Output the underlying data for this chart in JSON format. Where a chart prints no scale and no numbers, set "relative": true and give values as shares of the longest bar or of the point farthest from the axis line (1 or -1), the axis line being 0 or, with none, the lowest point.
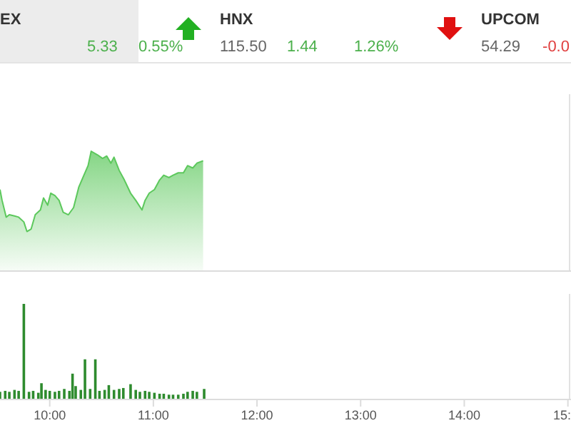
{
  "chart_data": [
    {
      "type": "other",
      "annotations": [
        "EX",
        "5.33",
        "0.55%",
        "HNX",
        "115.50",
        "1.44",
        "1.26%",
        "UPCOM",
        "54.29",
        "-0.0"
      ]
    },
    {
      "type": "area",
      "relative": true,
      "tick_labels": false,
      "xlim": [
        9.52,
        15.03
      ],
      "marker": "none",
      "series": [
        {
          "color": "#5cc85c",
          "x": [
            9.52,
            9.54,
            9.58,
            9.61,
            9.66,
            9.7,
            9.75,
            9.78,
            9.82,
            9.86,
            9.91,
            9.94,
            9.98,
            10.01,
            10.05,
            10.09,
            10.13,
            10.18,
            10.23,
            10.28,
            10.32,
            10.37,
            10.4,
            10.46,
            10.51,
            10.55,
            10.59,
            10.62,
            10.67,
            10.72,
            10.78,
            10.83,
            10.89,
            10.92,
            10.96,
            11.01,
            11.06,
            11.1,
            11.15,
            11.19,
            11.24,
            11.29,
            11.33,
            11.38,
            11.42,
            11.48
          ],
          "values": [
            0.68,
            0.59,
            0.45,
            0.47,
            0.46,
            0.45,
            0.41,
            0.33,
            0.35,
            0.47,
            0.51,
            0.61,
            0.55,
            0.65,
            0.63,
            0.59,
            0.49,
            0.47,
            0.53,
            0.7,
            0.78,
            0.88,
            1,
            0.97,
            0.94,
            0.96,
            0.9,
            0.95,
            0.84,
            0.76,
            0.65,
            0.59,
            0.51,
            0.59,
            0.65,
            0.68,
            0.76,
            0.8,
            0.78,
            0.8,
            0.82,
            0.82,
            0.88,
            0.86,
            0.9,
            0.92
          ]
        }
      ]
    },
    {
      "type": "bar",
      "relative": true,
      "tick_labels": "x",
      "xlim": [
        9.52,
        15.03
      ],
      "xticks": [
        {
          "value": 10,
          "label": "10:00"
        },
        {
          "value": 11,
          "label": "11:00"
        },
        {
          "value": 12,
          "label": "12:00"
        },
        {
          "value": 13,
          "label": "13:00"
        },
        {
          "value": 14,
          "label": "14:00"
        },
        {
          "value": 15,
          "label": "15:"
        }
      ],
      "series": [
        {
          "color": "#2e8b2e",
          "x": [
            9.52,
            9.57,
            9.61,
            9.66,
            9.7,
            9.75,
            9.8,
            9.84,
            9.89,
            9.92,
            9.96,
            10.0,
            10.05,
            10.09,
            10.14,
            10.19,
            10.22,
            10.25,
            10.3,
            10.34,
            10.39,
            10.44,
            10.48,
            10.53,
            10.57,
            10.62,
            10.67,
            10.71,
            10.78,
            10.83,
            10.87,
            10.92,
            10.96,
            11.01,
            11.06,
            11.1,
            11.15,
            11.19,
            11.24,
            11.29,
            11.33,
            11.38,
            11.42,
            11.49
          ],
          "values": [
            0.08,
            0.09,
            0.08,
            0.1,
            0.09,
            1,
            0.08,
            0.09,
            0.07,
            0.17,
            0.1,
            0.09,
            0.08,
            0.09,
            0.11,
            0.09,
            0.27,
            0.14,
            0.1,
            0.42,
            0.11,
            0.42,
            0.09,
            0.1,
            0.15,
            0.1,
            0.11,
            0.12,
            0.16,
            0.1,
            0.08,
            0.09,
            0.08,
            0.07,
            0.06,
            0.06,
            0.05,
            0.05,
            0.05,
            0.06,
            0.08,
            0.09,
            0.08,
            0.11
          ]
        }
      ]
    }
  ]
}
